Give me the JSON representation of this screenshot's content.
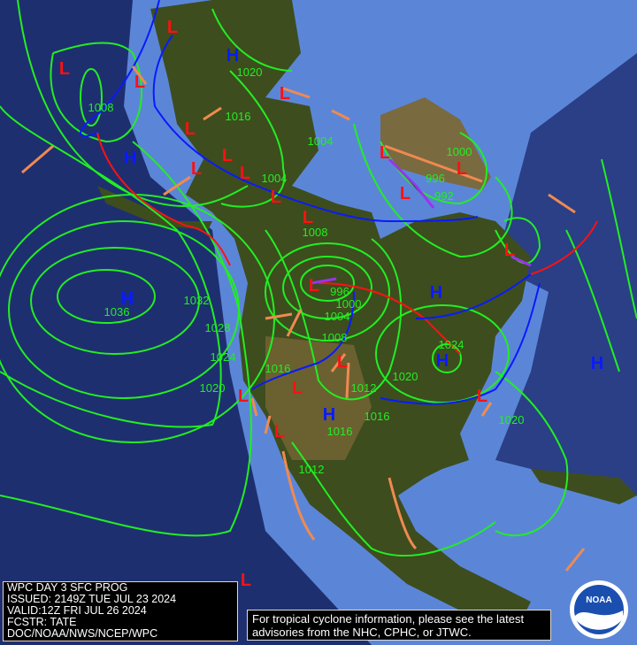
{
  "info_box": {
    "lines": [
      "WPC DAY 3 SFC PROG",
      "ISSUED: 2149Z TUE JUL 23 2024",
      "VALID:12Z FRI JUL 26 2024",
      "FCSTR: TATE",
      "DOC/NOAA/NWS/NCEP/WPC"
    ]
  },
  "tropical_note": {
    "line1": "For tropical cyclone information, please see the latest",
    "line2": "advisories from the NHC, CPHC, or JTWC."
  },
  "logo": {
    "text": "NOAA"
  },
  "colors": {
    "ocean": "#1e2f70",
    "shelf": "#5b86d8",
    "land": "#3a4a1c",
    "isobar": "#22ee22",
    "high": "#0a1aff",
    "low": "#ff1111",
    "cold_front": "#0a1aff",
    "warm_front": "#ff1111",
    "occluded": "#9933ee",
    "trough": "#f08a50"
  },
  "high_label": "H",
  "low_label": "L",
  "isobar_labels": [
    "1008",
    "1020",
    "1016",
    "1004",
    "1004",
    "1000",
    "996",
    "992",
    "1008",
    "996",
    "1000",
    "1004",
    "1008",
    "1036",
    "1032",
    "1028",
    "1024",
    "1020",
    "1016",
    "1012",
    "1020",
    "1024",
    "1016",
    "1016",
    "1012",
    "1020"
  ]
}
